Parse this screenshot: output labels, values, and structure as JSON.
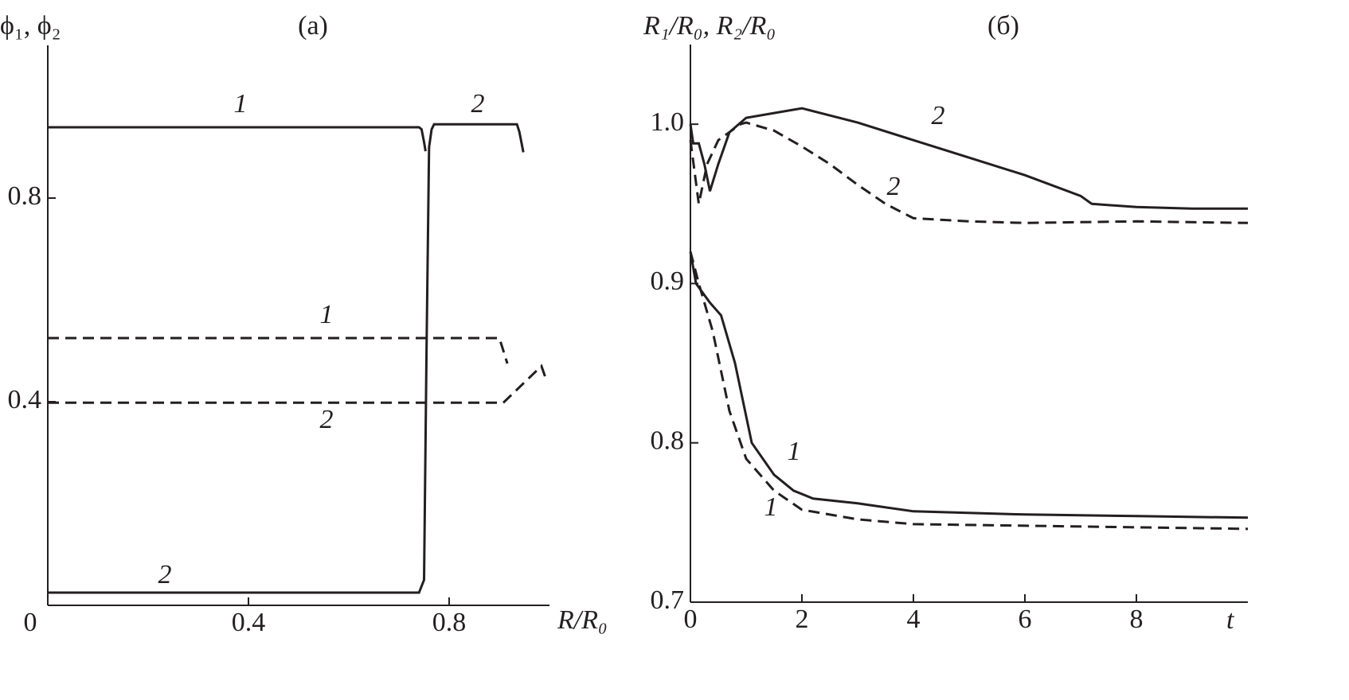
{
  "chart_data": [
    {
      "type": "line",
      "title": "(a)",
      "ylabel": "ϕ₁, ϕ₂",
      "xlabel": "R/R₀",
      "xlim": [
        0,
        1.0
      ],
      "ylim": [
        0,
        1.1
      ],
      "xticks": [
        0,
        0.4,
        0.8
      ],
      "yticks": [
        0.4,
        0.8
      ],
      "series": [
        {
          "name": "1",
          "color": "#231f20",
          "linestyle": "solid",
          "x": [
            0,
            0.74,
            0.745,
            0.75,
            0.753
          ],
          "values": [
            0.939,
            0.939,
            0.935,
            0.91,
            0.892
          ]
        },
        {
          "name": "2",
          "color": "#231f20",
          "linestyle": "solid",
          "x": [
            0,
            0.74,
            0.75,
            0.755,
            0.76,
            0.765,
            0.77,
            0.935,
            0.94,
            0.948
          ],
          "values": [
            0.025,
            0.025,
            0.05,
            0.5,
            0.9,
            0.935,
            0.945,
            0.945,
            0.93,
            0.89
          ]
        },
        {
          "name": "1",
          "color": "#231f20",
          "linestyle": "dashed",
          "x": [
            0,
            0.9,
            0.905,
            0.916
          ],
          "values": [
            0.525,
            0.525,
            0.51,
            0.475
          ]
        },
        {
          "name": "2",
          "color": "#231f20",
          "linestyle": "dashed",
          "x": [
            0,
            0.908,
            0.984,
            0.994
          ],
          "values": [
            0.398,
            0.398,
            0.47,
            0.442
          ]
        }
      ]
    },
    {
      "type": "line",
      "title": "(б)",
      "ylabel": "R₁/R₀, R₂/R₀",
      "xlabel": "t",
      "xlim": [
        0,
        10
      ],
      "ylim": [
        0.7,
        1.05
      ],
      "xticks": [
        0,
        2,
        4,
        6,
        8
      ],
      "yticks": [
        0.7,
        0.8,
        0.9,
        {
          "value": 1.0,
          "label": "1.0"
        }
      ],
      "series": [
        {
          "name": "2",
          "color": "#231f20",
          "linestyle": "solid",
          "x": [
            0,
            0.05,
            0.15,
            0.25,
            0.35,
            0.5,
            0.7,
            1,
            1.5,
            2,
            3,
            4,
            5,
            6,
            7,
            7.2,
            8,
            9,
            10
          ],
          "values": [
            1.0,
            0.988,
            0.988,
            0.975,
            0.958,
            0.975,
            0.995,
            1.004,
            1.007,
            1.01,
            1.001,
            0.99,
            0.979,
            0.968,
            0.955,
            0.95,
            0.948,
            0.947,
            0.947
          ]
        },
        {
          "name": "2",
          "color": "#231f20",
          "linestyle": "dashed",
          "x": [
            0,
            0.15,
            0.3,
            0.5,
            0.9,
            1.0,
            1.5,
            2,
            2.5,
            3,
            3.5,
            4,
            5,
            6,
            8,
            10
          ],
          "values": [
            0.99,
            0.95,
            0.975,
            0.99,
            1.0,
            1.001,
            0.996,
            0.986,
            0.975,
            0.962,
            0.95,
            0.941,
            0.939,
            0.938,
            0.939,
            0.938
          ]
        },
        {
          "name": "1",
          "color": "#231f20",
          "linestyle": "solid",
          "x": [
            0,
            0.1,
            0.35,
            0.55,
            0.8,
            1.1,
            1.5,
            1.85,
            2.2,
            3,
            4,
            6,
            8,
            10
          ],
          "values": [
            0.92,
            0.9,
            0.888,
            0.88,
            0.85,
            0.8,
            0.78,
            0.77,
            0.765,
            0.762,
            0.757,
            0.755,
            0.754,
            0.753
          ]
        },
        {
          "name": "1",
          "color": "#231f20",
          "linestyle": "dashed",
          "x": [
            0,
            0.15,
            0.4,
            0.7,
            1,
            1.5,
            2,
            3,
            4,
            6,
            8,
            10
          ],
          "values": [
            0.92,
            0.9,
            0.87,
            0.82,
            0.79,
            0.77,
            0.758,
            0.752,
            0.749,
            0.748,
            0.747,
            0.746
          ]
        }
      ]
    }
  ]
}
